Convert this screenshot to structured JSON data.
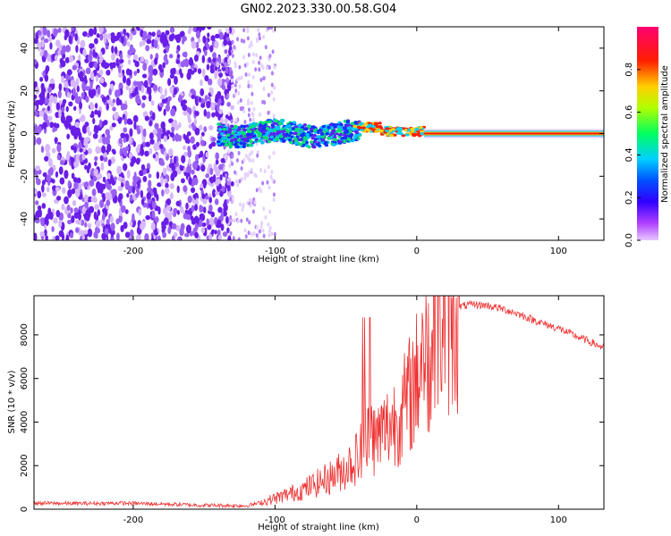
{
  "figure_title": "GN02.2023.330.00.58.G04",
  "colors": {
    "snr_line": "#ee3030",
    "scatter_dots": "#7a2cf0",
    "colorbar_stops": [
      "#e040ff",
      "#5000ff",
      "#0040ff",
      "#00d0ff",
      "#00ff60",
      "#b0ff00",
      "#ffd000",
      "#ff2000",
      "#ff0060"
    ]
  },
  "chart_data": [
    {
      "type": "heatmap",
      "xlabel": "Height of straight line (km)",
      "ylabel": "Frequency (Hz)",
      "xlim": [
        -270,
        132
      ],
      "ylim": [
        -50,
        50
      ],
      "xticks": [
        -200,
        -100,
        0,
        100
      ],
      "yticks": [
        -40,
        -20,
        0,
        20,
        40
      ],
      "colorbar": {
        "label": "Normalized spectral amplitude",
        "range": [
          0,
          1
        ],
        "ticks": [
          0.0,
          0.2,
          0.4,
          0.6,
          0.8
        ]
      },
      "description_bands": [
        {
          "x_range": [
            -270,
            -130
          ],
          "amplitude": "noise, ~0.2-0.3 scattered across all frequencies"
        },
        {
          "x_range": [
            -130,
            -40
          ],
          "amplitude": "signal emerging near 0 Hz, wavy band ±5 Hz"
        },
        {
          "x_range": [
            -40,
            132
          ],
          "amplitude": "strong carrier at 0 Hz, ~0.9-1.0"
        }
      ]
    },
    {
      "type": "line",
      "xlabel": "Height of straight line (km)",
      "ylabel": "SNR (10 * v/v)",
      "xlim": [
        -270,
        132
      ],
      "ylim": [
        0,
        9800
      ],
      "xticks": [
        -200,
        -100,
        0,
        100
      ],
      "yticks": [
        0,
        2000,
        4000,
        6000,
        8000
      ],
      "series": [
        {
          "x": [
            -270,
            -240,
            -210,
            -180,
            -150,
            -120,
            -110,
            -100,
            -90,
            -80,
            -70,
            -60,
            -50,
            -40,
            -35,
            -30,
            -20,
            -10,
            0,
            5,
            10,
            15,
            20,
            30,
            40,
            50,
            60,
            70,
            80,
            90,
            100,
            110,
            120,
            132
          ],
          "y": [
            280,
            260,
            280,
            240,
            180,
            160,
            300,
            500,
            700,
            900,
            1200,
            1500,
            1900,
            2500,
            4000,
            3200,
            3800,
            4500,
            6000,
            7800,
            6500,
            8800,
            9000,
            9300,
            9400,
            9350,
            9200,
            9000,
            8750,
            8500,
            8300,
            8000,
            7750,
            7400
          ]
        }
      ]
    }
  ]
}
